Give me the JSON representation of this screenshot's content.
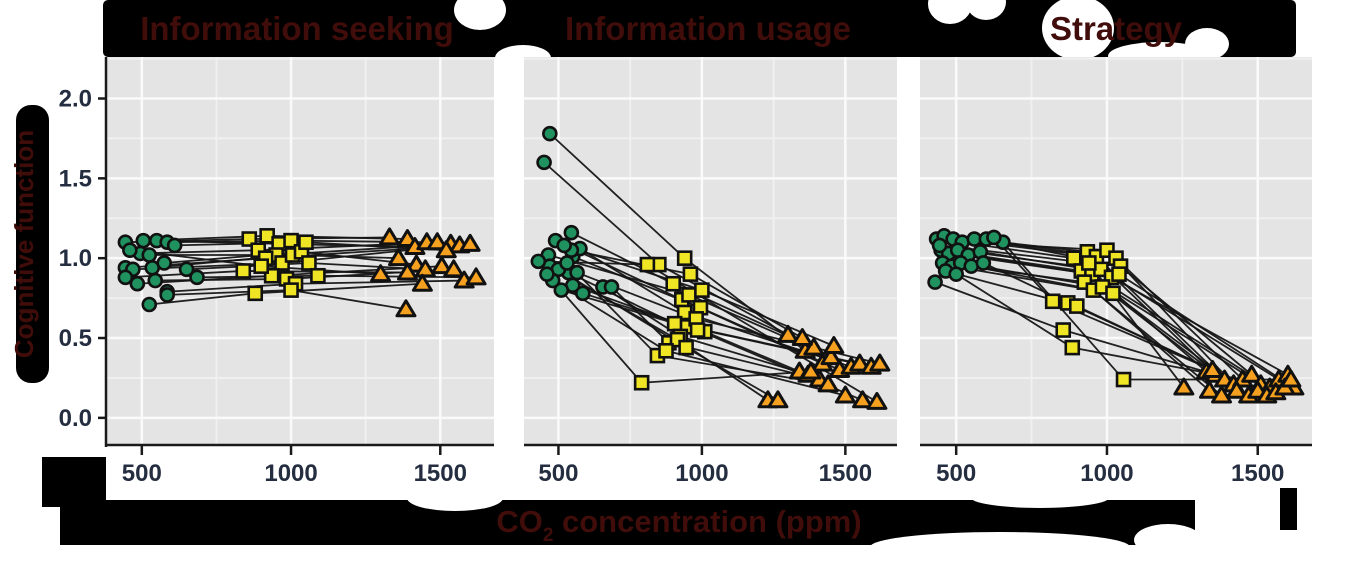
{
  "figure": {
    "y_axis_label": "Cognitive function",
    "x_axis_label": {
      "prefix": "CO",
      "sub": "2",
      "suffix": " concentration (ppm)"
    },
    "colors": {
      "title_text": "#410d0a",
      "tick_text": "#242e40",
      "panel_bg": "#e4e4e4",
      "grid_major": "#fafafa",
      "grid_minor": "#f0f0f0",
      "axis_line": "#1a1a1a",
      "connector_line": "#151515",
      "band_black": "#000000",
      "marker_green": "#1f9260",
      "marker_yellow": "#f0e524",
      "marker_orange": "#f5a01e",
      "marker_stroke": "#111111"
    }
  },
  "chart_data": {
    "type": "scatter",
    "title": "",
    "xlabel": "CO2 concentration (ppm)",
    "ylabel": "Cognitive function",
    "xlim": [
      380,
      1680
    ],
    "ylim": [
      -0.17,
      2.26
    ],
    "x_ticks": [
      "500",
      "1000",
      "1500"
    ],
    "y_ticks": [
      "0.0",
      "0.5",
      "1.0",
      "1.5",
      "2.0"
    ],
    "minor_x": [
      750,
      1250
    ],
    "minor_y": [
      0.25,
      0.75,
      1.25,
      1.75,
      2.25
    ],
    "grid": true,
    "legend": "none",
    "conditions": [
      {
        "marker": "circle",
        "color": "#1f9260"
      },
      {
        "marker": "square",
        "color": "#f0e524"
      },
      {
        "marker": "triangle",
        "color": "#f5a01e"
      }
    ],
    "panels": [
      {
        "title": "Information seeking",
        "subjects": [
          [
            [
              445,
              1.1
            ],
            [
              860,
              1.12
            ],
            [
              1330,
              1.13
            ]
          ],
          [
            [
              505,
              1.11
            ],
            [
              920,
              1.14
            ],
            [
              1390,
              1.12
            ]
          ],
          [
            [
              550,
              1.11
            ],
            [
              960,
              1.09
            ],
            [
              1415,
              1.07
            ]
          ],
          [
            [
              585,
              1.1
            ],
            [
              1000,
              1.11
            ],
            [
              1455,
              1.1
            ]
          ],
          [
            [
              495,
              1.03
            ],
            [
              890,
              1.05
            ],
            [
              1490,
              1.1
            ]
          ],
          [
            [
              525,
              1.02
            ],
            [
              950,
              1.02
            ],
            [
              1535,
              1.09
            ]
          ],
          [
            [
              445,
              0.94
            ],
            [
              915,
              1.0
            ],
            [
              1565,
              1.08
            ]
          ],
          [
            [
              470,
              0.93
            ],
            [
              970,
              0.97
            ],
            [
              1600,
              1.09
            ]
          ],
          [
            [
              535,
              0.94
            ],
            [
              1005,
              1.02
            ],
            [
              1360,
              1.0
            ]
          ],
          [
            [
              575,
              0.97
            ],
            [
              1035,
              1.04
            ],
            [
              1420,
              0.96
            ]
          ],
          [
            [
              650,
              0.93
            ],
            [
              1060,
              0.97
            ],
            [
              1450,
              0.93
            ]
          ],
          [
            [
              445,
              0.88
            ],
            [
              840,
              0.92
            ],
            [
              1390,
              0.91
            ]
          ],
          [
            [
              485,
              0.84
            ],
            [
              935,
              0.89
            ],
            [
              1505,
              0.95
            ]
          ],
          [
            [
              545,
              0.86
            ],
            [
              985,
              0.87
            ],
            [
              1545,
              0.93
            ]
          ],
          [
            [
              585,
              0.79
            ],
            [
              1015,
              0.84
            ],
            [
              1580,
              0.86
            ]
          ],
          [
            [
              685,
              0.88
            ],
            [
              1090,
              0.89
            ],
            [
              1620,
              0.88
            ]
          ],
          [
            [
              525,
              0.71
            ],
            [
              880,
              0.78
            ],
            [
              1440,
              0.84
            ]
          ],
          [
            [
              585,
              0.77
            ],
            [
              1000,
              0.8
            ],
            [
              1385,
              0.68
            ]
          ],
          [
            [
              460,
              1.05
            ],
            [
              900,
              0.95
            ],
            [
              1300,
              0.9
            ]
          ],
          [
            [
              610,
              1.08
            ],
            [
              1050,
              1.1
            ],
            [
              1520,
              1.05
            ]
          ]
        ]
      },
      {
        "title": "Information usage",
        "subjects": [
          [
            [
              470,
              1.78
            ],
            [
              940,
              1.0
            ],
            [
              1360,
              0.42
            ]
          ],
          [
            [
              450,
              1.6
            ],
            [
              850,
              0.96
            ],
            [
              1300,
              0.52
            ]
          ],
          [
            [
              545,
              1.16
            ],
            [
              900,
              0.84
            ],
            [
              1390,
              0.44
            ]
          ],
          [
            [
              490,
              1.11
            ],
            [
              930,
              0.74
            ],
            [
              1420,
              0.34
            ]
          ],
          [
            [
              465,
              1.02
            ],
            [
              955,
              0.77
            ],
            [
              1450,
              0.38
            ]
          ],
          [
            [
              550,
              1.01
            ],
            [
              995,
              0.69
            ],
            [
              1480,
              0.3
            ]
          ],
          [
            [
              575,
              1.06
            ],
            [
              940,
              0.66
            ],
            [
              1520,
              0.32
            ]
          ],
          [
            [
              535,
              0.91
            ],
            [
              905,
              0.59
            ],
            [
              1550,
              0.34
            ]
          ],
          [
            [
              550,
              0.83
            ],
            [
              950,
              0.57
            ],
            [
              1590,
              0.32
            ]
          ],
          [
            [
              565,
              0.91
            ],
            [
              980,
              0.62
            ],
            [
              1620,
              0.34
            ]
          ],
          [
            [
              585,
              0.78
            ],
            [
              1010,
              0.54
            ],
            [
              1340,
              0.29
            ]
          ],
          [
            [
              655,
              0.82
            ],
            [
              925,
              0.51
            ],
            [
              1370,
              0.27
            ]
          ],
          [
            [
              685,
              0.82
            ],
            [
              885,
              0.47
            ],
            [
              1410,
              0.24
            ]
          ],
          [
            [
              470,
              0.95
            ],
            [
              915,
              0.49
            ],
            [
              1230,
              0.11
            ]
          ],
          [
            [
              500,
              0.93
            ],
            [
              945,
              0.44
            ],
            [
              1265,
              0.11
            ]
          ],
          [
            [
              530,
              0.97
            ],
            [
              845,
              0.39
            ],
            [
              1440,
              0.21
            ]
          ],
          [
            [
              480,
              0.86
            ],
            [
              875,
              0.42
            ],
            [
              1500,
              0.14
            ]
          ],
          [
            [
              510,
              0.8
            ],
            [
              985,
              0.55
            ],
            [
              1560,
              0.11
            ]
          ],
          [
            [
              460,
              0.9
            ],
            [
              790,
              0.22
            ],
            [
              1380,
              0.29
            ]
          ],
          [
            [
              545,
              1.05
            ],
            [
              960,
              0.9
            ],
            [
              1350,
              0.5
            ]
          ],
          [
            [
              430,
              0.98
            ],
            [
              810,
              0.96
            ],
            [
              1610,
              0.1
            ]
          ],
          [
            [
              520,
              1.08
            ],
            [
              1000,
              0.8
            ],
            [
              1460,
              0.45
            ]
          ]
        ]
      },
      {
        "title": "Strategy",
        "subjects": [
          [
            [
              435,
              1.12
            ],
            [
              890,
              1.0
            ],
            [
              1330,
              0.29
            ]
          ],
          [
            [
              460,
              1.14
            ],
            [
              935,
              1.04
            ],
            [
              1360,
              0.27
            ]
          ],
          [
            [
              490,
              1.12
            ],
            [
              965,
              1.01
            ],
            [
              1390,
              0.24
            ]
          ],
          [
            [
              520,
              1.1
            ],
            [
              1000,
              1.05
            ],
            [
              1420,
              0.21
            ]
          ],
          [
            [
              560,
              1.12
            ],
            [
              1030,
              1.0
            ],
            [
              1450,
              0.24
            ]
          ],
          [
            [
              600,
              1.12
            ],
            [
              1045,
              0.95
            ],
            [
              1480,
              0.27
            ]
          ],
          [
            [
              450,
              1.05
            ],
            [
              915,
              0.92
            ],
            [
              1510,
              0.21
            ]
          ],
          [
            [
              475,
              1.03
            ],
            [
              950,
              0.9
            ],
            [
              1540,
              0.19
            ]
          ],
          [
            [
              505,
              1.05
            ],
            [
              980,
              0.93
            ],
            [
              1570,
              0.24
            ]
          ],
          [
            [
              540,
              1.02
            ],
            [
              1015,
              0.88
            ],
            [
              1600,
              0.27
            ]
          ],
          [
            [
              580,
              1.04
            ],
            [
              1040,
              0.9
            ],
            [
              1620,
              0.19
            ]
          ],
          [
            [
              455,
              0.97
            ],
            [
              925,
              0.85
            ],
            [
              1340,
              0.17
            ]
          ],
          [
            [
              485,
              0.95
            ],
            [
              955,
              0.8
            ],
            [
              1380,
              0.14
            ]
          ],
          [
            [
              515,
              0.97
            ],
            [
              985,
              0.82
            ],
            [
              1430,
              0.17
            ]
          ],
          [
            [
              550,
              0.95
            ],
            [
              1020,
              0.78
            ],
            [
              1470,
              0.14
            ]
          ],
          [
            [
              590,
              0.97
            ],
            [
              870,
              0.72
            ],
            [
              1500,
              0.17
            ]
          ],
          [
            [
              465,
              0.92
            ],
            [
              900,
              0.7
            ],
            [
              1530,
              0.14
            ]
          ],
          [
            [
              430,
              0.85
            ],
            [
              855,
              0.55
            ],
            [
              1560,
              0.16
            ]
          ],
          [
            [
              500,
              0.9
            ],
            [
              885,
              0.44
            ],
            [
              1590,
              0.19
            ]
          ],
          [
            [
              655,
              1.1
            ],
            [
              1055,
              0.24
            ],
            [
              1610,
              0.24
            ]
          ],
          [
            [
              445,
              1.08
            ],
            [
              940,
              0.97
            ],
            [
              1255,
              0.19
            ]
          ],
          [
            [
              625,
              1.13
            ],
            [
              820,
              0.73
            ],
            [
              1350,
              0.3
            ]
          ]
        ]
      }
    ]
  }
}
